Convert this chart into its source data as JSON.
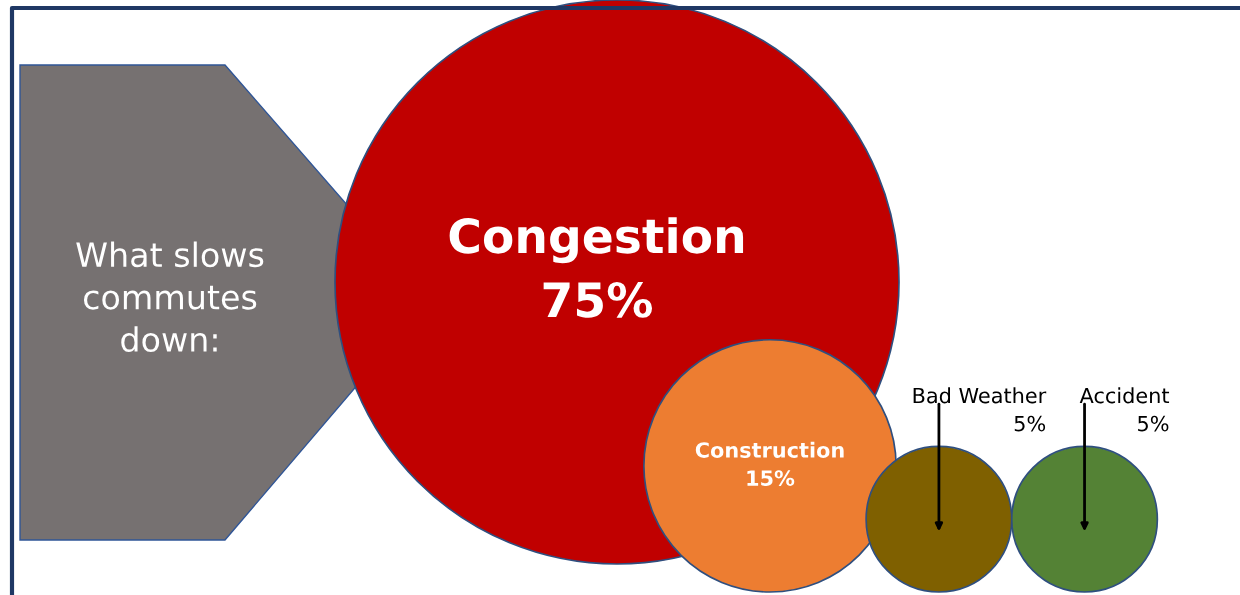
{
  "chart_data": {
    "type": "other",
    "title": "What slows commutes down:",
    "categories": [
      "Congestion",
      "Construction",
      "Bad Weather",
      "Accident"
    ],
    "values": [
      75,
      15,
      5,
      5
    ],
    "value_labels": [
      "75%",
      "15%",
      "5%",
      "5%"
    ],
    "colors": [
      "#c00000",
      "#ed7d31",
      "#7f6000",
      "#548235"
    ]
  }
}
